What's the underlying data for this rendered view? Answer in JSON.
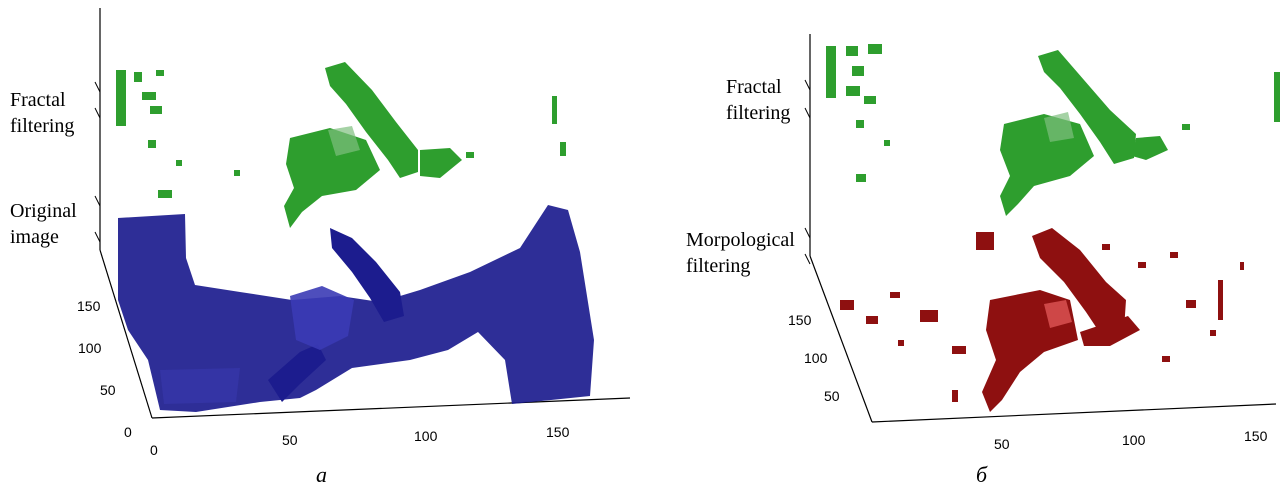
{
  "panel_a": {
    "caption": "a",
    "labels": {
      "top": "Fractal\nfiltering",
      "bottom": "Original\nimage"
    },
    "y_ticks": [
      "150",
      "100",
      "50",
      "0"
    ],
    "x_ticks": [
      "0",
      "50",
      "100",
      "150"
    ],
    "colors": {
      "top": "#2e9e2e",
      "bottom": "#1c1c8e"
    }
  },
  "panel_b": {
    "caption": "б",
    "labels": {
      "top": "Fractal\nfiltering",
      "bottom": "Morpological\nfiltering"
    },
    "y_ticks": [
      "150",
      "100",
      "50"
    ],
    "x_ticks": [
      "50",
      "100",
      "150"
    ],
    "colors": {
      "top": "#2e9e2e",
      "bottom": "#8e1010"
    }
  }
}
